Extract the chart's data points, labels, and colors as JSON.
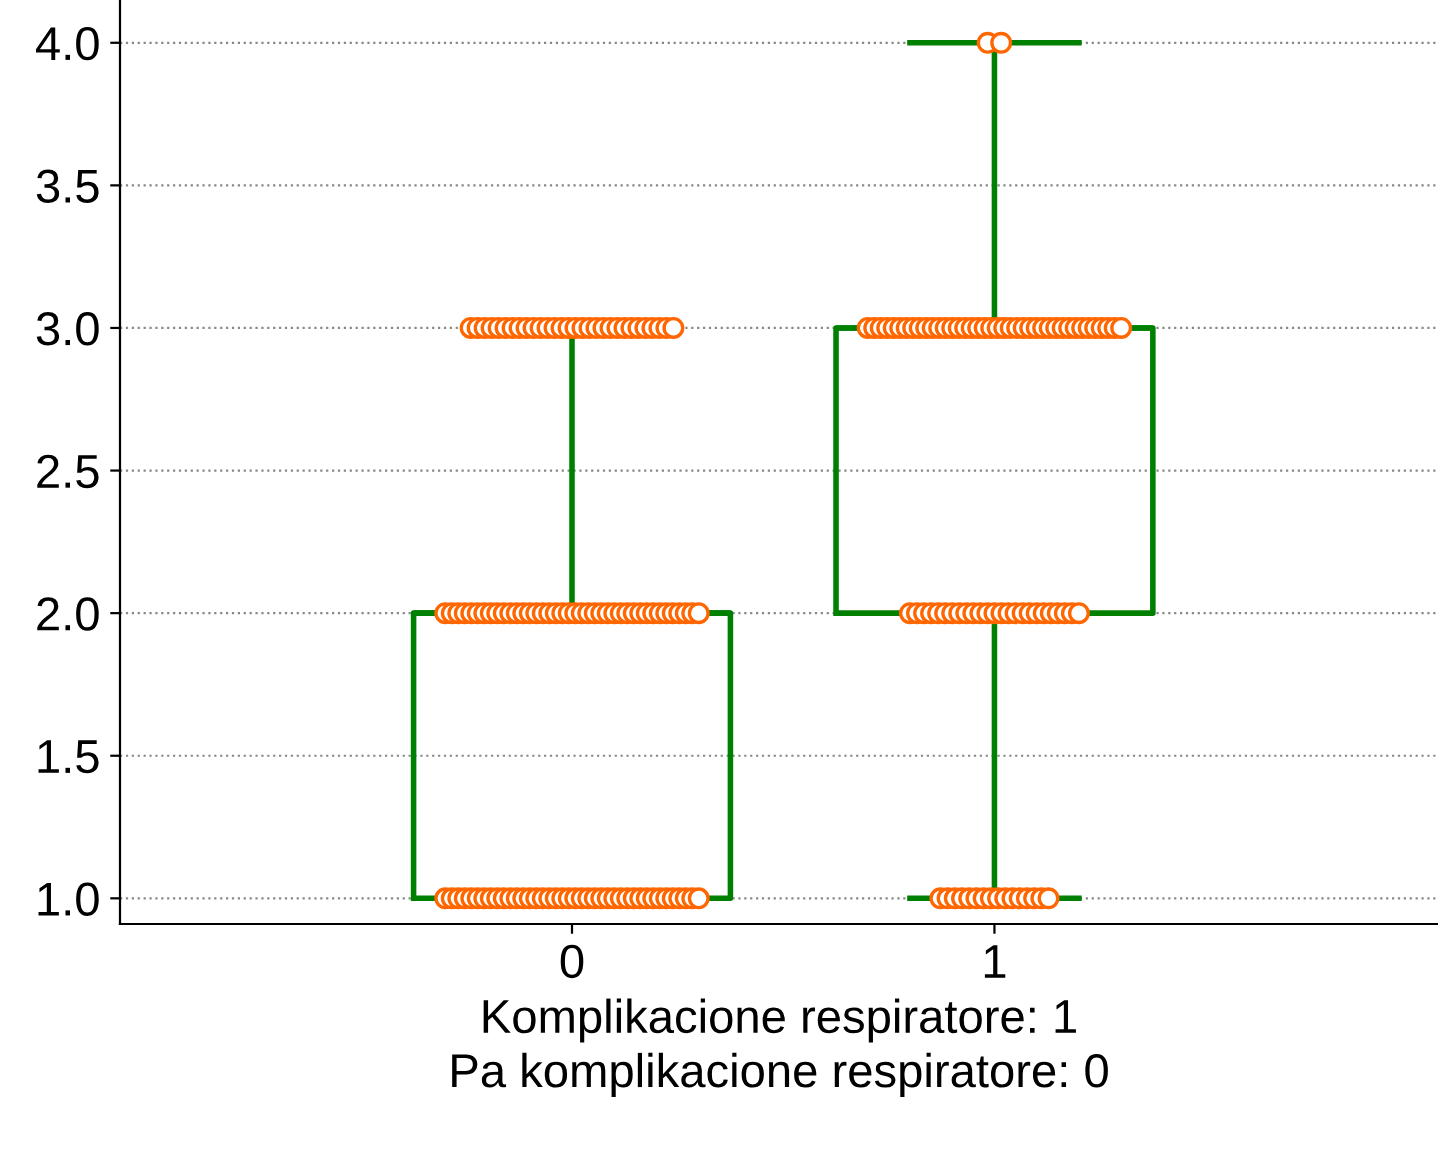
{
  "chart_data": {
    "type": "box",
    "categories": [
      "0",
      "1"
    ],
    "xlabel": "Komplikacione respiratore: 1\nPa komplikacione respiratore: 0",
    "boxes": [
      {
        "low": 1,
        "q1": 1,
        "median": 2,
        "q3": 2,
        "high": 3
      },
      {
        "low": 1,
        "q1": 2,
        "median": 3,
        "q3": 3,
        "high": 4
      }
    ],
    "color": "#008000",
    "series": [
      {
        "type": "scatter",
        "color": "#ff6600",
        "x": [
          "0",
          "0",
          "0",
          "0",
          "0",
          "0",
          "0",
          "0",
          "0",
          "0",
          "0",
          "0",
          "0",
          "0",
          "0",
          "0",
          "0",
          "0",
          "0",
          "0",
          "0",
          "0",
          "0",
          "0",
          "0",
          "0",
          "0",
          "0",
          "0",
          "0",
          "0",
          "0",
          "0",
          "0",
          "0",
          "0",
          "0",
          "0",
          "0",
          "0",
          "0",
          "0",
          "0",
          "0",
          "0",
          "0",
          "0",
          "0",
          "0",
          "0",
          "0",
          "0",
          "0",
          "0",
          "0",
          "0",
          "0",
          "0",
          "0",
          "0",
          "0",
          "0",
          "0",
          "0",
          "0",
          "0",
          "0",
          "0",
          "0",
          "0",
          "0",
          "0",
          "0",
          "0",
          "0",
          "0",
          "0",
          "0",
          "0",
          "0",
          "0",
          "0",
          "0",
          "0",
          "0",
          "0",
          "0",
          "0",
          "0",
          "0",
          "0",
          "0",
          "0",
          "0",
          "0",
          "0",
          "0",
          "0",
          "0",
          "0",
          "0",
          "0",
          "0",
          "0",
          "0",
          "0",
          "0",
          "0",
          "0",
          "0"
        ],
        "values": [
          1,
          1,
          1,
          1,
          1,
          1,
          1,
          1,
          1,
          1,
          1,
          1,
          1,
          1,
          1,
          1,
          1,
          1,
          1,
          1,
          1,
          1,
          1,
          1,
          1,
          1,
          1,
          1,
          1,
          1,
          1,
          1,
          1,
          1,
          1,
          1,
          1,
          1,
          1,
          1,
          2,
          2,
          2,
          2,
          2,
          2,
          2,
          2,
          2,
          2,
          2,
          2,
          2,
          2,
          2,
          2,
          2,
          2,
          2,
          2,
          2,
          2,
          2,
          2,
          2,
          2,
          2,
          2,
          2,
          2,
          2,
          2,
          2,
          2,
          2,
          2,
          2,
          2,
          2,
          2,
          3,
          3,
          3,
          3,
          3,
          3,
          3,
          3,
          3,
          3,
          3,
          3,
          3,
          3,
          3,
          3,
          3,
          3,
          3,
          3,
          3,
          3,
          3,
          3,
          3,
          3,
          3,
          3,
          3,
          3
        ]
      },
      {
        "type": "scatter",
        "color": "#ff6600",
        "x": [
          "1",
          "1",
          "1",
          "1",
          "1",
          "1",
          "1",
          "1",
          "1",
          "1",
          "1",
          "1",
          "1",
          "1",
          "1",
          "1",
          "1",
          "1",
          "1",
          "1",
          "1",
          "1",
          "1",
          "1",
          "1",
          "1",
          "1",
          "1",
          "1",
          "1",
          "1",
          "1",
          "1",
          "1",
          "1",
          "1",
          "1",
          "1",
          "1",
          "1",
          "1",
          "1",
          "1",
          "1",
          "1",
          "1",
          "1",
          "1",
          "1",
          "1",
          "1",
          "1",
          "1",
          "1",
          "1",
          "1",
          "1",
          "1",
          "1",
          "1",
          "1",
          "1",
          "1",
          "1",
          "1",
          "1",
          "1",
          "1",
          "1",
          "1",
          "1",
          "1",
          "1",
          "1",
          "1",
          "1",
          "1",
          "1",
          "1",
          "1",
          "1",
          "1",
          "1"
        ],
        "values": [
          1,
          1,
          1,
          1,
          1,
          1,
          1,
          1,
          1,
          1,
          1,
          1,
          1,
          1,
          1,
          1,
          2,
          2,
          2,
          2,
          2,
          2,
          2,
          2,
          2,
          2,
          2,
          2,
          2,
          2,
          2,
          2,
          2,
          2,
          2,
          2,
          2,
          2,
          2,
          2,
          2,
          3,
          3,
          3,
          3,
          3,
          3,
          3,
          3,
          3,
          3,
          3,
          3,
          3,
          3,
          3,
          3,
          3,
          3,
          3,
          3,
          3,
          3,
          3,
          3,
          3,
          3,
          3,
          3,
          3,
          3,
          3,
          3,
          3,
          3,
          3,
          3,
          3,
          3,
          3,
          3,
          4,
          4
        ]
      }
    ],
    "ylim": [
      0.91,
      4.15
    ],
    "yticks": [
      {
        "value": 1,
        "label": "1.0"
      },
      {
        "value": 1.5,
        "label": "1.5"
      },
      {
        "value": 2,
        "label": "2.0"
      },
      {
        "value": 2.5,
        "label": "2.5"
      },
      {
        "value": 3,
        "label": "3.0"
      },
      {
        "value": 3.5,
        "label": "3.5"
      },
      {
        "value": 4,
        "label": "4.0"
      }
    ],
    "grid": "y",
    "marker": "circle"
  }
}
